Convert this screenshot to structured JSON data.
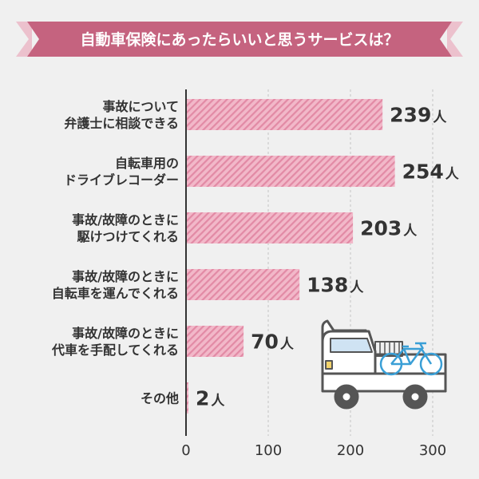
{
  "title": "自動車保険にあったらいいと思うサービスは？",
  "colors": {
    "banner": "#c5637f",
    "banner_light": "#ecc1cd",
    "bar": "#f2b8c9",
    "bar_stripe": "#e28aa5",
    "background": "#f0f0f0",
    "text": "#333333"
  },
  "truck_icon": "pickup-truck-with-bicycle-icon",
  "chart_data": {
    "type": "bar",
    "orientation": "horizontal",
    "categories": [
      [
        "事故について",
        "弁護士に相談できる"
      ],
      [
        "自転車用の",
        "ドライブレコーダー"
      ],
      [
        "事故/故障のときに",
        "駆けつけてくれる"
      ],
      [
        "事故/故障のときに",
        "自転車を運んでくれる"
      ],
      [
        "事故/故障のときに",
        "代車を手配してくれる"
      ],
      [
        "その他"
      ]
    ],
    "values": [
      239,
      254,
      203,
      138,
      70,
      2
    ],
    "value_unit": "人",
    "xlim": [
      0,
      300
    ],
    "xticks": [
      0,
      100,
      200,
      300
    ],
    "grid": true
  }
}
